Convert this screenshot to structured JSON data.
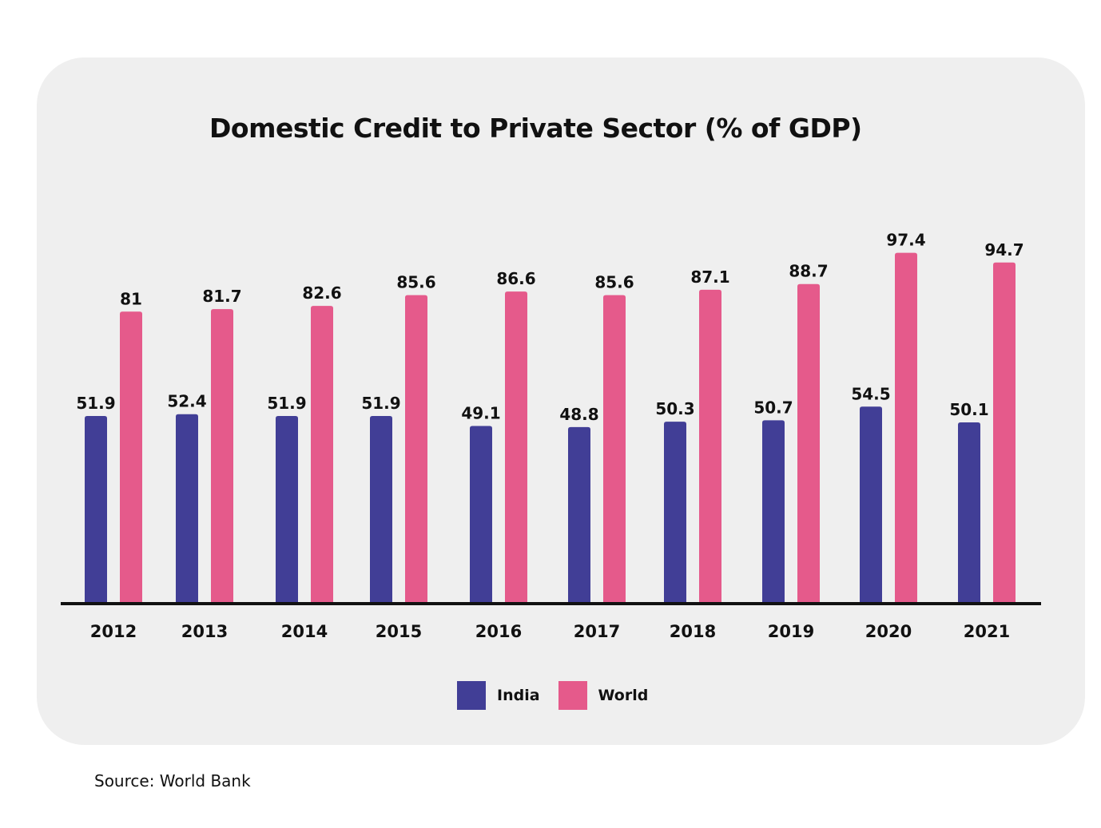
{
  "chart_data": {
    "type": "bar",
    "title": "Domestic Credit to Private Sector (% of GDP)",
    "categories": [
      "2012",
      "2013",
      "2014",
      "2015",
      "2016",
      "2017",
      "2018",
      "2019",
      "2020",
      "2021"
    ],
    "series": [
      {
        "name": "India",
        "color": "#413e96",
        "values": [
          51.9,
          52.4,
          51.9,
          51.9,
          49.1,
          48.8,
          50.3,
          50.7,
          54.5,
          50.1
        ],
        "labels": [
          "51.9",
          "52.4",
          "51.9",
          "51.9",
          "49.1",
          "48.8",
          "50.3",
          "50.7",
          "54.5",
          "50.1"
        ]
      },
      {
        "name": "World",
        "color": "#e55a8b",
        "values": [
          81,
          81.7,
          82.6,
          85.6,
          86.6,
          85.6,
          87.1,
          88.7,
          97.4,
          94.7
        ],
        "labels": [
          "81",
          "81.7",
          "82.6",
          "85.6",
          "86.6",
          "85.6",
          "87.1",
          "88.7",
          "97.4",
          "94.7"
        ]
      }
    ],
    "xlabel": "",
    "ylabel": "",
    "ylim": [
      0,
      100
    ],
    "grid": false,
    "legend": "bottom-center"
  },
  "source": "Source: World Bank",
  "colors": {
    "card": "#efefef",
    "axis": "#111111"
  }
}
